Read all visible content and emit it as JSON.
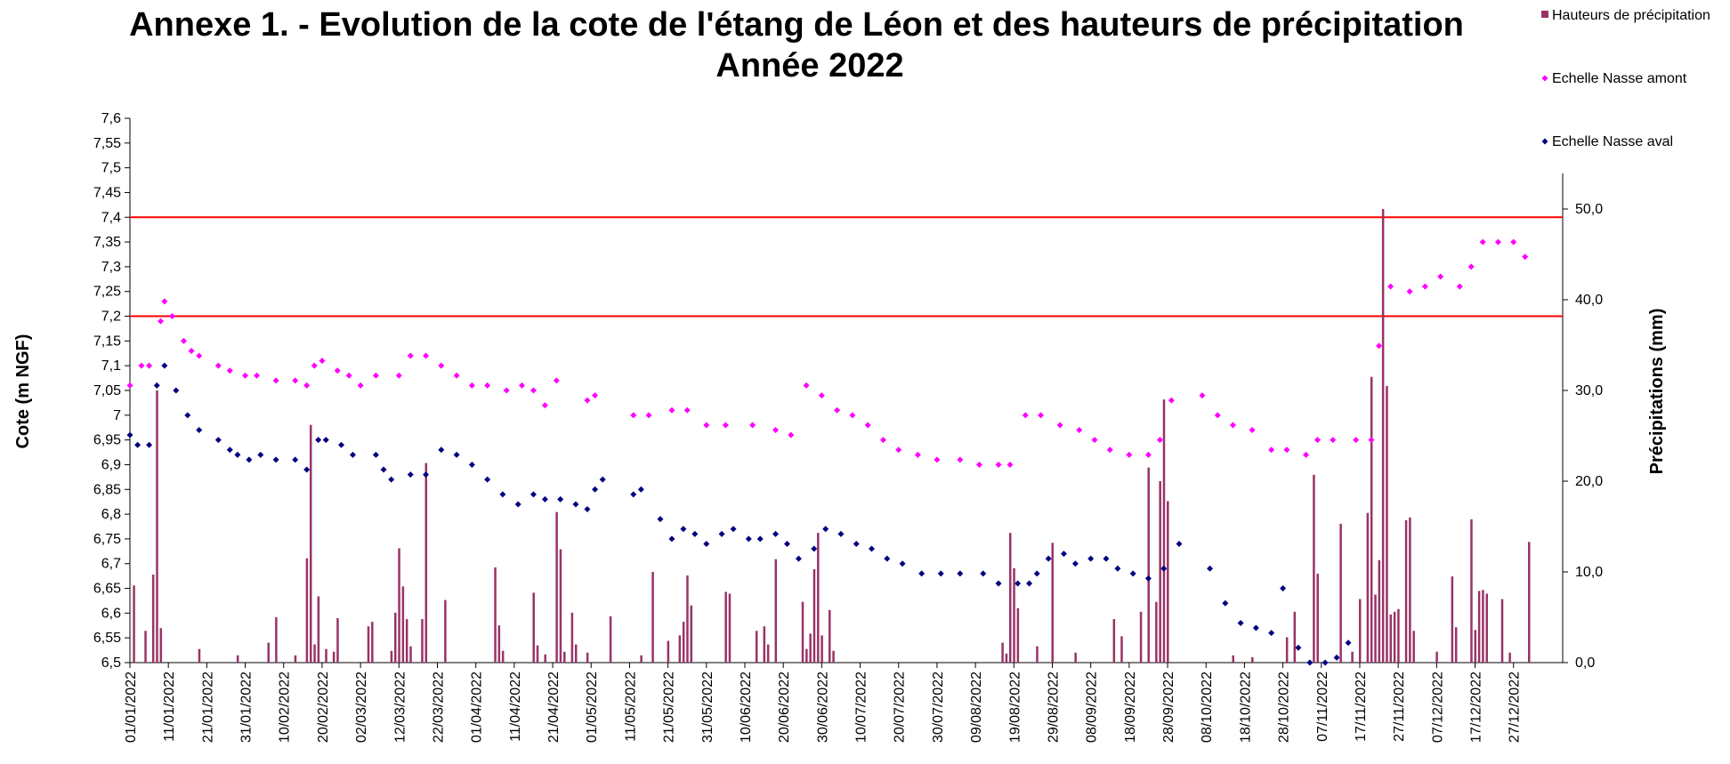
{
  "chart_data": {
    "type": "scatter",
    "title": "Annexe 1. - Evolution de la cote de l'étang de Léon et des hauteurs de précipitation",
    "subtitle": "Année 2022",
    "y_label": "Cote (m NGF)",
    "y2_label": "Précipitations (mm)",
    "xlim": [
      "01/01/2022",
      "31/12/2022"
    ],
    "xticks": [
      "01/01/2022",
      "11/01/2022",
      "21/01/2022",
      "31/01/2022",
      "10/02/2022",
      "20/02/2022",
      "02/03/2022",
      "12/03/2022",
      "22/03/2022",
      "01/04/2022",
      "11/04/2022",
      "21/04/2022",
      "01/05/2022",
      "11/05/2022",
      "21/05/2022",
      "31/05/2022",
      "10/06/2022",
      "20/06/2022",
      "30/06/2022",
      "10/07/2022",
      "20/07/2022",
      "30/07/2022",
      "09/08/2022",
      "19/08/2022",
      "29/08/2022",
      "08/09/2022",
      "18/09/2022",
      "28/09/2022",
      "08/10/2022",
      "18/10/2022",
      "28/10/2022",
      "07/11/2022",
      "17/11/2022",
      "27/11/2022",
      "07/12/2022",
      "17/12/2022",
      "27/12/2022"
    ],
    "ylim": [
      6.5,
      7.6
    ],
    "yticks": [
      {
        "value": 6.5,
        "label": "6,5"
      },
      {
        "value": 6.55,
        "label": "6,55"
      },
      {
        "value": 6.6,
        "label": "6,6"
      },
      {
        "value": 6.65,
        "label": "6,65"
      },
      {
        "value": 6.7,
        "label": "6,7"
      },
      {
        "value": 6.75,
        "label": "6,75"
      },
      {
        "value": 6.8,
        "label": "6,8"
      },
      {
        "value": 6.85,
        "label": "6,85"
      },
      {
        "value": 6.9,
        "label": "6,9"
      },
      {
        "value": 6.95,
        "label": "6,95"
      },
      {
        "value": 7,
        "label": "7"
      },
      {
        "value": 7.05,
        "label": "7,05"
      },
      {
        "value": 7.1,
        "label": "7,1"
      },
      {
        "value": 7.15,
        "label": "7,15"
      },
      {
        "value": 7.2,
        "label": "7,2"
      },
      {
        "value": 7.25,
        "label": "7,25"
      },
      {
        "value": 7.3,
        "label": "7,3"
      },
      {
        "value": 7.35,
        "label": "7,35"
      },
      {
        "value": 7.4,
        "label": "7,4"
      },
      {
        "value": 7.45,
        "label": "7,45"
      },
      {
        "value": 7.5,
        "label": "7,5"
      },
      {
        "value": 7.55,
        "label": "7,55"
      },
      {
        "value": 7.6,
        "label": "7,6"
      }
    ],
    "y2lim": [
      0,
      60
    ],
    "y2ticks": [
      {
        "value": 0,
        "label": "0,0"
      },
      {
        "value": 10,
        "label": "10,0"
      },
      {
        "value": 20,
        "label": "20,0"
      },
      {
        "value": 30,
        "label": "30,0"
      },
      {
        "value": 40,
        "label": "40,0"
      },
      {
        "value": 50,
        "label": "50,0"
      }
    ],
    "reference_lines": {
      "values": [
        7.4,
        7.2
      ],
      "color": "#ff0000"
    },
    "grid": false,
    "legend": "top-right",
    "series": [
      {
        "name": "Hauteurs de précipitation",
        "type": "bar",
        "axis": "y2",
        "color": "#993366",
        "x": [
          "02/01/2022",
          "05/01/2022",
          "07/01/2022",
          "08/01/2022",
          "09/01/2022",
          "19/01/2022",
          "29/01/2022",
          "06/02/2022",
          "08/02/2022",
          "13/02/2022",
          "16/02/2022",
          "17/02/2022",
          "18/02/2022",
          "19/02/2022",
          "21/02/2022",
          "23/02/2022",
          "24/02/2022",
          "04/03/2022",
          "05/03/2022",
          "10/03/2022",
          "11/03/2022",
          "12/03/2022",
          "13/03/2022",
          "14/03/2022",
          "15/03/2022",
          "18/03/2022",
          "19/03/2022",
          "24/03/2022",
          "06/04/2022",
          "07/04/2022",
          "08/04/2022",
          "16/04/2022",
          "17/04/2022",
          "19/04/2022",
          "22/04/2022",
          "23/04/2022",
          "24/04/2022",
          "26/04/2022",
          "27/04/2022",
          "30/04/2022",
          "06/05/2022",
          "14/05/2022",
          "17/05/2022",
          "21/05/2022",
          "24/05/2022",
          "25/05/2022",
          "26/05/2022",
          "27/05/2022",
          "05/06/2022",
          "06/06/2022",
          "13/06/2022",
          "15/06/2022",
          "16/06/2022",
          "18/06/2022",
          "25/06/2022",
          "26/06/2022",
          "27/06/2022",
          "28/06/2022",
          "29/06/2022",
          "30/06/2022",
          "02/07/2022",
          "03/07/2022",
          "16/08/2022",
          "17/08/2022",
          "18/08/2022",
          "19/08/2022",
          "20/08/2022",
          "25/08/2022",
          "29/08/2022",
          "04/09/2022",
          "14/09/2022",
          "16/09/2022",
          "21/09/2022",
          "23/09/2022",
          "25/09/2022",
          "26/09/2022",
          "27/09/2022",
          "28/09/2022",
          "15/10/2022",
          "20/10/2022",
          "29/10/2022",
          "31/10/2022",
          "05/11/2022",
          "06/11/2022",
          "12/11/2022",
          "15/11/2022",
          "17/11/2022",
          "19/11/2022",
          "20/11/2022",
          "21/11/2022",
          "22/11/2022",
          "23/11/2022",
          "24/11/2022",
          "25/11/2022",
          "26/11/2022",
          "27/11/2022",
          "29/11/2022",
          "30/11/2022",
          "01/12/2022",
          "07/12/2022",
          "11/12/2022",
          "12/12/2022",
          "16/12/2022",
          "17/12/2022",
          "18/12/2022",
          "19/12/2022",
          "20/12/2022",
          "24/12/2022",
          "26/12/2022",
          "31/12/2022"
        ],
        "values": [
          8.5,
          3.5,
          9.7,
          30,
          3.8,
          1.5,
          0.8,
          2.2,
          5,
          0.8,
          11.5,
          26.2,
          2,
          7.3,
          1.5,
          1.2,
          4.9,
          4,
          4.5,
          1.3,
          5.5,
          12.6,
          8.4,
          4.8,
          1.8,
          4.8,
          22,
          6.9,
          10.5,
          4.1,
          1.3,
          7.7,
          1.9,
          0.9,
          16.6,
          12.5,
          1.2,
          5.5,
          2,
          1.1,
          5.1,
          0.8,
          10,
          2.4,
          3,
          4.5,
          9.6,
          6.3,
          7.8,
          7.6,
          3.5,
          4,
          2,
          11.4,
          6.7,
          1.5,
          3.2,
          10.3,
          14.3,
          3,
          5.8,
          1.3,
          2.2,
          1,
          14.3,
          10.4,
          6,
          1.8,
          13.2,
          1.1,
          4.8,
          2.9,
          5.6,
          21.5,
          6.7,
          20,
          29,
          17.8,
          0.8,
          0.6,
          2.8,
          5.6,
          20.7,
          9.8,
          15.3,
          1.2,
          7,
          16.5,
          31.5,
          7.5,
          11.3,
          50,
          30.5,
          5.3,
          5.6,
          5.9,
          15.7,
          16,
          3.5,
          1.2,
          9.5,
          3.9,
          15.8,
          3.6,
          7.9,
          8,
          7.6,
          7,
          1.1,
          13.3
        ]
      },
      {
        "name": "Echelle Nasse amont",
        "color": "#ff00ff",
        "x": [
          "01/01/2022",
          "04/01/2022",
          "06/01/2022",
          "09/01/2022",
          "10/01/2022",
          "12/01/2022",
          "15/01/2022",
          "17/01/2022",
          "19/01/2022",
          "24/01/2022",
          "27/01/2022",
          "31/01/2022",
          "03/02/2022",
          "08/02/2022",
          "13/02/2022",
          "16/02/2022",
          "18/02/2022",
          "20/02/2022",
          "24/02/2022",
          "27/02/2022",
          "02/03/2022",
          "06/03/2022",
          "12/03/2022",
          "15/03/2022",
          "19/03/2022",
          "23/03/2022",
          "27/03/2022",
          "31/03/2022",
          "04/04/2022",
          "09/04/2022",
          "13/04/2022",
          "16/04/2022",
          "19/04/2022",
          "22/04/2022",
          "30/04/2022",
          "02/05/2022",
          "12/05/2022",
          "16/05/2022",
          "22/05/2022",
          "26/05/2022",
          "31/05/2022",
          "05/06/2022",
          "12/06/2022",
          "18/06/2022",
          "22/06/2022",
          "26/06/2022",
          "30/06/2022",
          "04/07/2022",
          "08/07/2022",
          "12/07/2022",
          "16/07/2022",
          "20/07/2022",
          "25/07/2022",
          "30/07/2022",
          "05/08/2022",
          "10/08/2022",
          "15/08/2022",
          "18/08/2022",
          "22/08/2022",
          "26/08/2022",
          "31/08/2022",
          "05/09/2022",
          "09/09/2022",
          "13/09/2022",
          "18/09/2022",
          "23/09/2022",
          "26/09/2022",
          "29/09/2022",
          "07/10/2022",
          "11/10/2022",
          "15/10/2022",
          "20/10/2022",
          "25/10/2022",
          "29/10/2022",
          "03/11/2022",
          "06/11/2022",
          "10/11/2022",
          "16/11/2022",
          "20/11/2022",
          "22/11/2022",
          "25/11/2022",
          "30/11/2022",
          "04/12/2022",
          "08/12/2022",
          "13/12/2022",
          "16/12/2022",
          "19/12/2022",
          "23/12/2022",
          "27/12/2022",
          "30/12/2022"
        ],
        "values": [
          7.06,
          7.1,
          7.1,
          7.19,
          7.23,
          7.2,
          7.15,
          7.13,
          7.12,
          7.1,
          7.09,
          7.08,
          7.08,
          7.07,
          7.07,
          7.06,
          7.1,
          7.11,
          7.09,
          7.08,
          7.06,
          7.08,
          7.08,
          7.12,
          7.12,
          7.1,
          7.08,
          7.06,
          7.06,
          7.05,
          7.06,
          7.05,
          7.02,
          7.07,
          7.03,
          7.04,
          7,
          7,
          7.01,
          7.01,
          6.98,
          6.98,
          6.98,
          6.97,
          6.96,
          7.06,
          7.04,
          7.01,
          7,
          6.98,
          6.95,
          6.93,
          6.92,
          6.91,
          6.91,
          6.9,
          6.9,
          6.9,
          7,
          7,
          6.98,
          6.97,
          6.95,
          6.93,
          6.92,
          6.92,
          6.95,
          7.03,
          7.04,
          7,
          6.98,
          6.97,
          6.93,
          6.93,
          6.92,
          6.95,
          6.95,
          6.95,
          6.95,
          7.14,
          7.26,
          7.25,
          7.26,
          7.28,
          7.26,
          7.3,
          7.35,
          7.35,
          7.35,
          7.32
        ]
      },
      {
        "name": "Echelle Nasse aval",
        "color": "#000080",
        "x": [
          "01/01/2022",
          "03/01/2022",
          "06/01/2022",
          "08/01/2022",
          "10/01/2022",
          "13/01/2022",
          "16/01/2022",
          "19/01/2022",
          "24/01/2022",
          "27/01/2022",
          "29/01/2022",
          "01/02/2022",
          "04/02/2022",
          "08/02/2022",
          "13/02/2022",
          "16/02/2022",
          "19/02/2022",
          "21/02/2022",
          "25/02/2022",
          "28/02/2022",
          "06/03/2022",
          "08/03/2022",
          "10/03/2022",
          "15/03/2022",
          "19/03/2022",
          "23/03/2022",
          "27/03/2022",
          "31/03/2022",
          "04/04/2022",
          "08/04/2022",
          "12/04/2022",
          "16/04/2022",
          "19/04/2022",
          "23/04/2022",
          "27/04/2022",
          "30/04/2022",
          "02/05/2022",
          "04/05/2022",
          "12/05/2022",
          "14/05/2022",
          "19/05/2022",
          "22/05/2022",
          "25/05/2022",
          "28/05/2022",
          "31/05/2022",
          "04/06/2022",
          "07/06/2022",
          "11/06/2022",
          "14/06/2022",
          "18/06/2022",
          "21/06/2022",
          "24/06/2022",
          "28/06/2022",
          "01/07/2022",
          "05/07/2022",
          "09/07/2022",
          "13/07/2022",
          "17/07/2022",
          "21/07/2022",
          "26/07/2022",
          "31/07/2022",
          "05/08/2022",
          "11/08/2022",
          "15/08/2022",
          "20/08/2022",
          "23/08/2022",
          "25/08/2022",
          "28/08/2022",
          "01/09/2022",
          "04/09/2022",
          "08/09/2022",
          "12/09/2022",
          "15/09/2022",
          "19/09/2022",
          "23/09/2022",
          "27/09/2022",
          "01/10/2022",
          "09/10/2022",
          "13/10/2022",
          "17/10/2022",
          "21/10/2022",
          "25/10/2022",
          "28/10/2022",
          "01/11/2022",
          "04/11/2022",
          "08/11/2022",
          "11/11/2022",
          "14/11/2022"
        ],
        "values": [
          6.96,
          6.94,
          6.94,
          7.06,
          7.1,
          7.05,
          7,
          6.97,
          6.95,
          6.93,
          6.92,
          6.91,
          6.92,
          6.91,
          6.91,
          6.89,
          6.95,
          6.95,
          6.94,
          6.92,
          6.92,
          6.89,
          6.87,
          6.88,
          6.88,
          6.93,
          6.92,
          6.9,
          6.87,
          6.84,
          6.82,
          6.84,
          6.83,
          6.83,
          6.82,
          6.81,
          6.85,
          6.87,
          6.84,
          6.85,
          6.79,
          6.75,
          6.77,
          6.76,
          6.74,
          6.76,
          6.77,
          6.75,
          6.75,
          6.76,
          6.74,
          6.71,
          6.73,
          6.77,
          6.76,
          6.74,
          6.73,
          6.71,
          6.7,
          6.68,
          6.68,
          6.68,
          6.68,
          6.66,
          6.66,
          6.66,
          6.68,
          6.71,
          6.72,
          6.7,
          6.71,
          6.71,
          6.69,
          6.68,
          6.67,
          6.69,
          6.74,
          6.69,
          6.62,
          6.58,
          6.57,
          6.56,
          6.65,
          6.53,
          6.5,
          6.5,
          6.51,
          6.54
        ]
      }
    ]
  }
}
